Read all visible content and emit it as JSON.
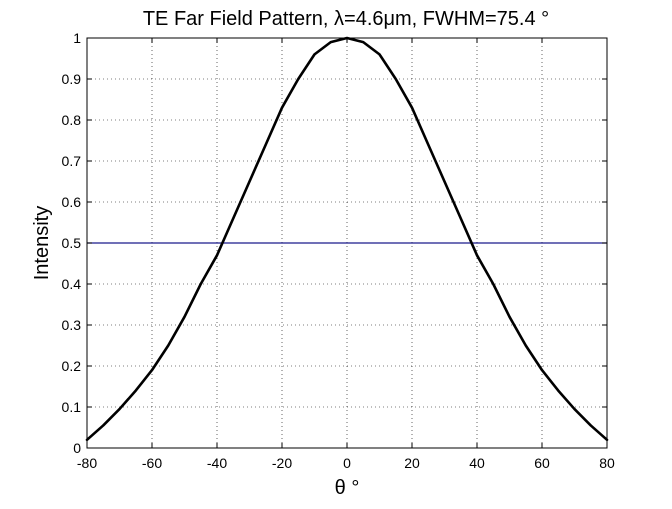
{
  "chart_data": {
    "type": "line",
    "title": "TE Far Field Pattern, λ=4.6μm, FWHM=75.4 °",
    "xlabel": "θ °",
    "ylabel": "Intensity",
    "xlim": [
      -80,
      80
    ],
    "ylim": [
      0,
      1
    ],
    "grid": true,
    "x_ticks": [
      -80,
      -60,
      -40,
      -20,
      0,
      20,
      40,
      60,
      80
    ],
    "x_tick_labels": [
      "-80",
      "-60",
      "-40",
      "-20",
      "0",
      "20",
      "40",
      "60",
      "80"
    ],
    "y_ticks": [
      0,
      0.1,
      0.2,
      0.3,
      0.4,
      0.5,
      0.6,
      0.7,
      0.8,
      0.9,
      1
    ],
    "y_tick_labels": [
      "0",
      "0.1",
      "0.2",
      "0.3",
      "0.4",
      "0.5",
      "0.6",
      "0.7",
      "0.8",
      "0.9",
      "1"
    ],
    "series": [
      {
        "color": "#000000",
        "x": [
          -80,
          -75,
          -70,
          -65,
          -60,
          -55,
          -50,
          -45,
          -40,
          -35,
          -30,
          -25,
          -20,
          -15,
          -10,
          -5,
          0,
          5,
          10,
          15,
          20,
          25,
          30,
          35,
          40,
          45,
          50,
          55,
          60,
          65,
          70,
          75,
          80
        ],
        "y": [
          0.02,
          0.055,
          0.095,
          0.14,
          0.19,
          0.25,
          0.32,
          0.4,
          0.47,
          0.56,
          0.65,
          0.74,
          0.83,
          0.9,
          0.96,
          0.99,
          1.0,
          0.99,
          0.96,
          0.9,
          0.83,
          0.74,
          0.65,
          0.56,
          0.47,
          0.4,
          0.32,
          0.25,
          0.19,
          0.14,
          0.095,
          0.055,
          0.02
        ]
      }
    ],
    "reference_lines": [
      {
        "orientation": "horizontal",
        "y": 0.5,
        "color": "#1a1a8c"
      }
    ]
  }
}
